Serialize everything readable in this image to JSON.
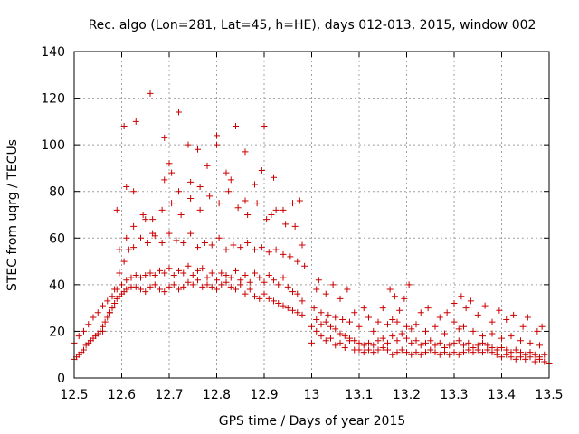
{
  "chart_data": {
    "type": "scatter",
    "title": "Rec. algo (Lon=281, Lat=45, h=HE), days 012-013, 2015, window 002",
    "xlabel": "GPS time / Days of year 2015",
    "ylabel": "STEC from uqrg / TECUs",
    "xlim": [
      12.5,
      13.5
    ],
    "ylim": [
      0,
      140
    ],
    "xticks": [
      "12.5",
      "12.6",
      "12.7",
      "12.8",
      "12.9",
      "13",
      "13.1",
      "13.2",
      "13.3",
      "13.4",
      "13.5"
    ],
    "yticks": [
      "0",
      "20",
      "40",
      "60",
      "80",
      "100",
      "120",
      "140"
    ],
    "grid": true,
    "marker": "plus",
    "color": "#cc0000",
    "series": [
      {
        "name": "STEC",
        "x": [
          12.5,
          12.505,
          12.51,
          12.515,
          12.52,
          12.525,
          12.53,
          12.535,
          12.54,
          12.545,
          12.55,
          12.555,
          12.56,
          12.565,
          12.57,
          12.575,
          12.58,
          12.585,
          12.59,
          12.595,
          12.6,
          12.605,
          12.61,
          12.62,
          12.63,
          12.64,
          12.65,
          12.66,
          12.67,
          12.68,
          12.69,
          12.7,
          12.71,
          12.72,
          12.73,
          12.74,
          12.75,
          12.76,
          12.77,
          12.78,
          12.79,
          12.8,
          12.81,
          12.82,
          12.83,
          12.84,
          12.85,
          12.86,
          12.87,
          12.88,
          12.89,
          12.9,
          12.91,
          12.92,
          12.93,
          12.94,
          12.95,
          12.96,
          12.97,
          12.98,
          12.5,
          12.51,
          12.52,
          12.53,
          12.54,
          12.55,
          12.56,
          12.57,
          12.58,
          12.59,
          12.6,
          12.61,
          12.62,
          12.63,
          12.64,
          12.65,
          12.66,
          12.67,
          12.68,
          12.69,
          12.7,
          12.71,
          12.72,
          12.73,
          12.74,
          12.75,
          12.76,
          12.77,
          12.78,
          12.79,
          12.8,
          12.81,
          12.82,
          12.83,
          12.84,
          12.85,
          12.86,
          12.87,
          12.88,
          12.89,
          12.9,
          12.91,
          12.92,
          12.93,
          12.94,
          12.95,
          12.96,
          12.97,
          12.98,
          12.56,
          12.575,
          12.585,
          12.595,
          12.605,
          12.615,
          12.625,
          12.64,
          12.655,
          12.67,
          12.685,
          12.7,
          12.715,
          12.73,
          12.745,
          12.76,
          12.775,
          12.79,
          12.805,
          12.82,
          12.835,
          12.85,
          12.865,
          12.88,
          12.895,
          12.91,
          12.925,
          12.94,
          12.955,
          12.97,
          12.985,
          12.58,
          12.595,
          12.61,
          12.625,
          12.645,
          12.665,
          12.685,
          12.705,
          12.725,
          12.745,
          12.765,
          12.785,
          12.805,
          12.825,
          12.845,
          12.865,
          12.885,
          12.905,
          12.925,
          12.945,
          12.965,
          12.98,
          12.59,
          12.61,
          12.63,
          12.66,
          12.69,
          12.7,
          12.72,
          12.74,
          12.76,
          12.78,
          12.8,
          12.82,
          12.84,
          12.86,
          12.88,
          12.9,
          12.92,
          12.94,
          12.96,
          12.975,
          12.605,
          12.625,
          12.65,
          12.665,
          12.69,
          12.705,
          12.72,
          12.745,
          12.765,
          12.8,
          12.83,
          12.86,
          12.895,
          12.915,
          13.0,
          13.01,
          13.02,
          13.03,
          13.04,
          13.05,
          13.06,
          13.07,
          13.08,
          13.09,
          13.1,
          13.11,
          13.12,
          13.13,
          13.14,
          13.15,
          13.16,
          13.17,
          13.18,
          13.19,
          13.2,
          13.21,
          13.22,
          13.23,
          13.24,
          13.25,
          13.26,
          13.27,
          13.28,
          13.29,
          13.3,
          13.31,
          13.32,
          13.33,
          13.34,
          13.35,
          13.36,
          13.37,
          13.38,
          13.39,
          13.4,
          13.41,
          13.42,
          13.43,
          13.44,
          13.45,
          13.46,
          13.47,
          13.48,
          13.49,
          13.5,
          13.0,
          13.01,
          13.02,
          13.03,
          13.04,
          13.05,
          13.06,
          13.07,
          13.08,
          13.09,
          13.1,
          13.11,
          13.12,
          13.13,
          13.14,
          13.15,
          13.16,
          13.17,
          13.18,
          13.19,
          13.2,
          13.21,
          13.22,
          13.23,
          13.24,
          13.25,
          13.26,
          13.27,
          13.28,
          13.29,
          13.3,
          13.31,
          13.32,
          13.33,
          13.34,
          13.35,
          13.36,
          13.37,
          13.38,
          13.39,
          13.4,
          13.41,
          13.42,
          13.43,
          13.44,
          13.45,
          13.46,
          13.47,
          13.48,
          13.49,
          13.005,
          13.02,
          13.035,
          13.05,
          13.065,
          13.08,
          13.1,
          13.13,
          13.16,
          13.17,
          13.18,
          13.2,
          13.21,
          13.22,
          13.24,
          13.26,
          13.28,
          13.3,
          13.31,
          13.32,
          13.34,
          13.36,
          13.38,
          13.4,
          13.42,
          13.44,
          13.46,
          13.48,
          13.01,
          13.03,
          13.06,
          13.09,
          13.12,
          13.15,
          13.175,
          13.195,
          13.23,
          13.27,
          13.3,
          13.325,
          13.35,
          13.38,
          13.41,
          13.445,
          13.475,
          13.015,
          13.045,
          13.075,
          13.11,
          13.14,
          13.165,
          13.185,
          13.205,
          13.245,
          13.285,
          13.315,
          13.335,
          13.365,
          13.395,
          13.425,
          13.455,
          13.485
        ],
        "y": [
          8,
          9,
          10,
          11,
          12,
          14,
          15,
          16,
          17,
          18,
          19,
          20,
          22,
          24,
          26,
          28,
          30,
          32,
          34,
          35,
          36,
          37,
          38,
          39,
          39,
          38,
          37,
          39,
          40,
          38,
          37,
          39,
          40,
          38,
          39,
          41,
          40,
          42,
          39,
          40,
          39,
          38,
          40,
          41,
          39,
          38,
          40,
          36,
          38,
          35,
          34,
          36,
          34,
          33,
          32,
          31,
          30,
          29,
          28,
          27,
          15,
          18,
          20,
          23,
          26,
          28,
          31,
          33,
          35,
          38,
          40,
          42,
          43,
          44,
          43,
          44,
          45,
          44,
          46,
          45,
          47,
          44,
          46,
          45,
          48,
          44,
          46,
          47,
          43,
          45,
          42,
          45,
          44,
          43,
          46,
          42,
          44,
          41,
          45,
          43,
          41,
          44,
          42,
          40,
          43,
          39,
          37,
          36,
          33,
          20,
          28,
          38,
          45,
          50,
          55,
          56,
          60,
          58,
          61,
          58,
          62,
          59,
          58,
          62,
          56,
          58,
          57,
          60,
          55,
          57,
          56,
          58,
          55,
          56,
          54,
          55,
          53,
          52,
          50,
          48,
          30,
          55,
          60,
          65,
          70,
          68,
          72,
          75,
          70,
          77,
          72,
          78,
          75,
          80,
          73,
          70,
          75,
          68,
          72,
          66,
          65,
          57,
          72,
          82,
          110,
          122,
          103,
          92,
          114,
          100,
          98,
          91,
          104,
          88,
          108,
          97,
          83,
          108,
          86,
          72,
          75,
          76,
          108,
          80,
          68,
          62,
          85,
          88,
          80,
          84,
          82,
          100,
          85,
          76,
          89,
          70,
          15,
          20,
          18,
          16,
          17,
          14,
          15,
          13,
          16,
          12,
          12,
          11,
          12,
          11,
          12,
          13,
          12,
          10,
          11,
          12,
          11,
          10,
          11,
          10,
          11,
          12,
          11,
          10,
          11,
          10,
          11,
          10,
          11,
          12,
          11,
          12,
          11,
          12,
          11,
          10,
          9,
          10,
          9,
          8,
          9,
          8,
          9,
          7,
          8,
          7,
          6,
          22,
          25,
          23,
          24,
          22,
          21,
          19,
          18,
          17,
          16,
          15,
          14,
          15,
          14,
          16,
          17,
          15,
          18,
          16,
          19,
          17,
          15,
          16,
          14,
          15,
          16,
          14,
          15,
          13,
          14,
          15,
          16,
          14,
          15,
          13,
          14,
          15,
          14,
          13,
          12,
          13,
          12,
          11,
          12,
          11,
          10,
          11,
          10,
          9,
          10,
          30,
          28,
          27,
          26,
          25,
          24,
          22,
          20,
          23,
          25,
          24,
          22,
          21,
          23,
          20,
          22,
          19,
          24,
          21,
          22,
          20,
          18,
          19,
          17,
          18,
          16,
          15,
          14,
          38,
          36,
          34,
          28,
          26,
          30,
          35,
          34,
          28,
          26,
          32,
          30,
          27,
          24,
          25,
          22,
          20,
          42,
          40,
          38,
          30,
          24,
          38,
          29,
          40,
          30,
          28,
          35,
          33,
          31,
          29,
          27,
          26,
          22
        ]
      }
    ]
  }
}
